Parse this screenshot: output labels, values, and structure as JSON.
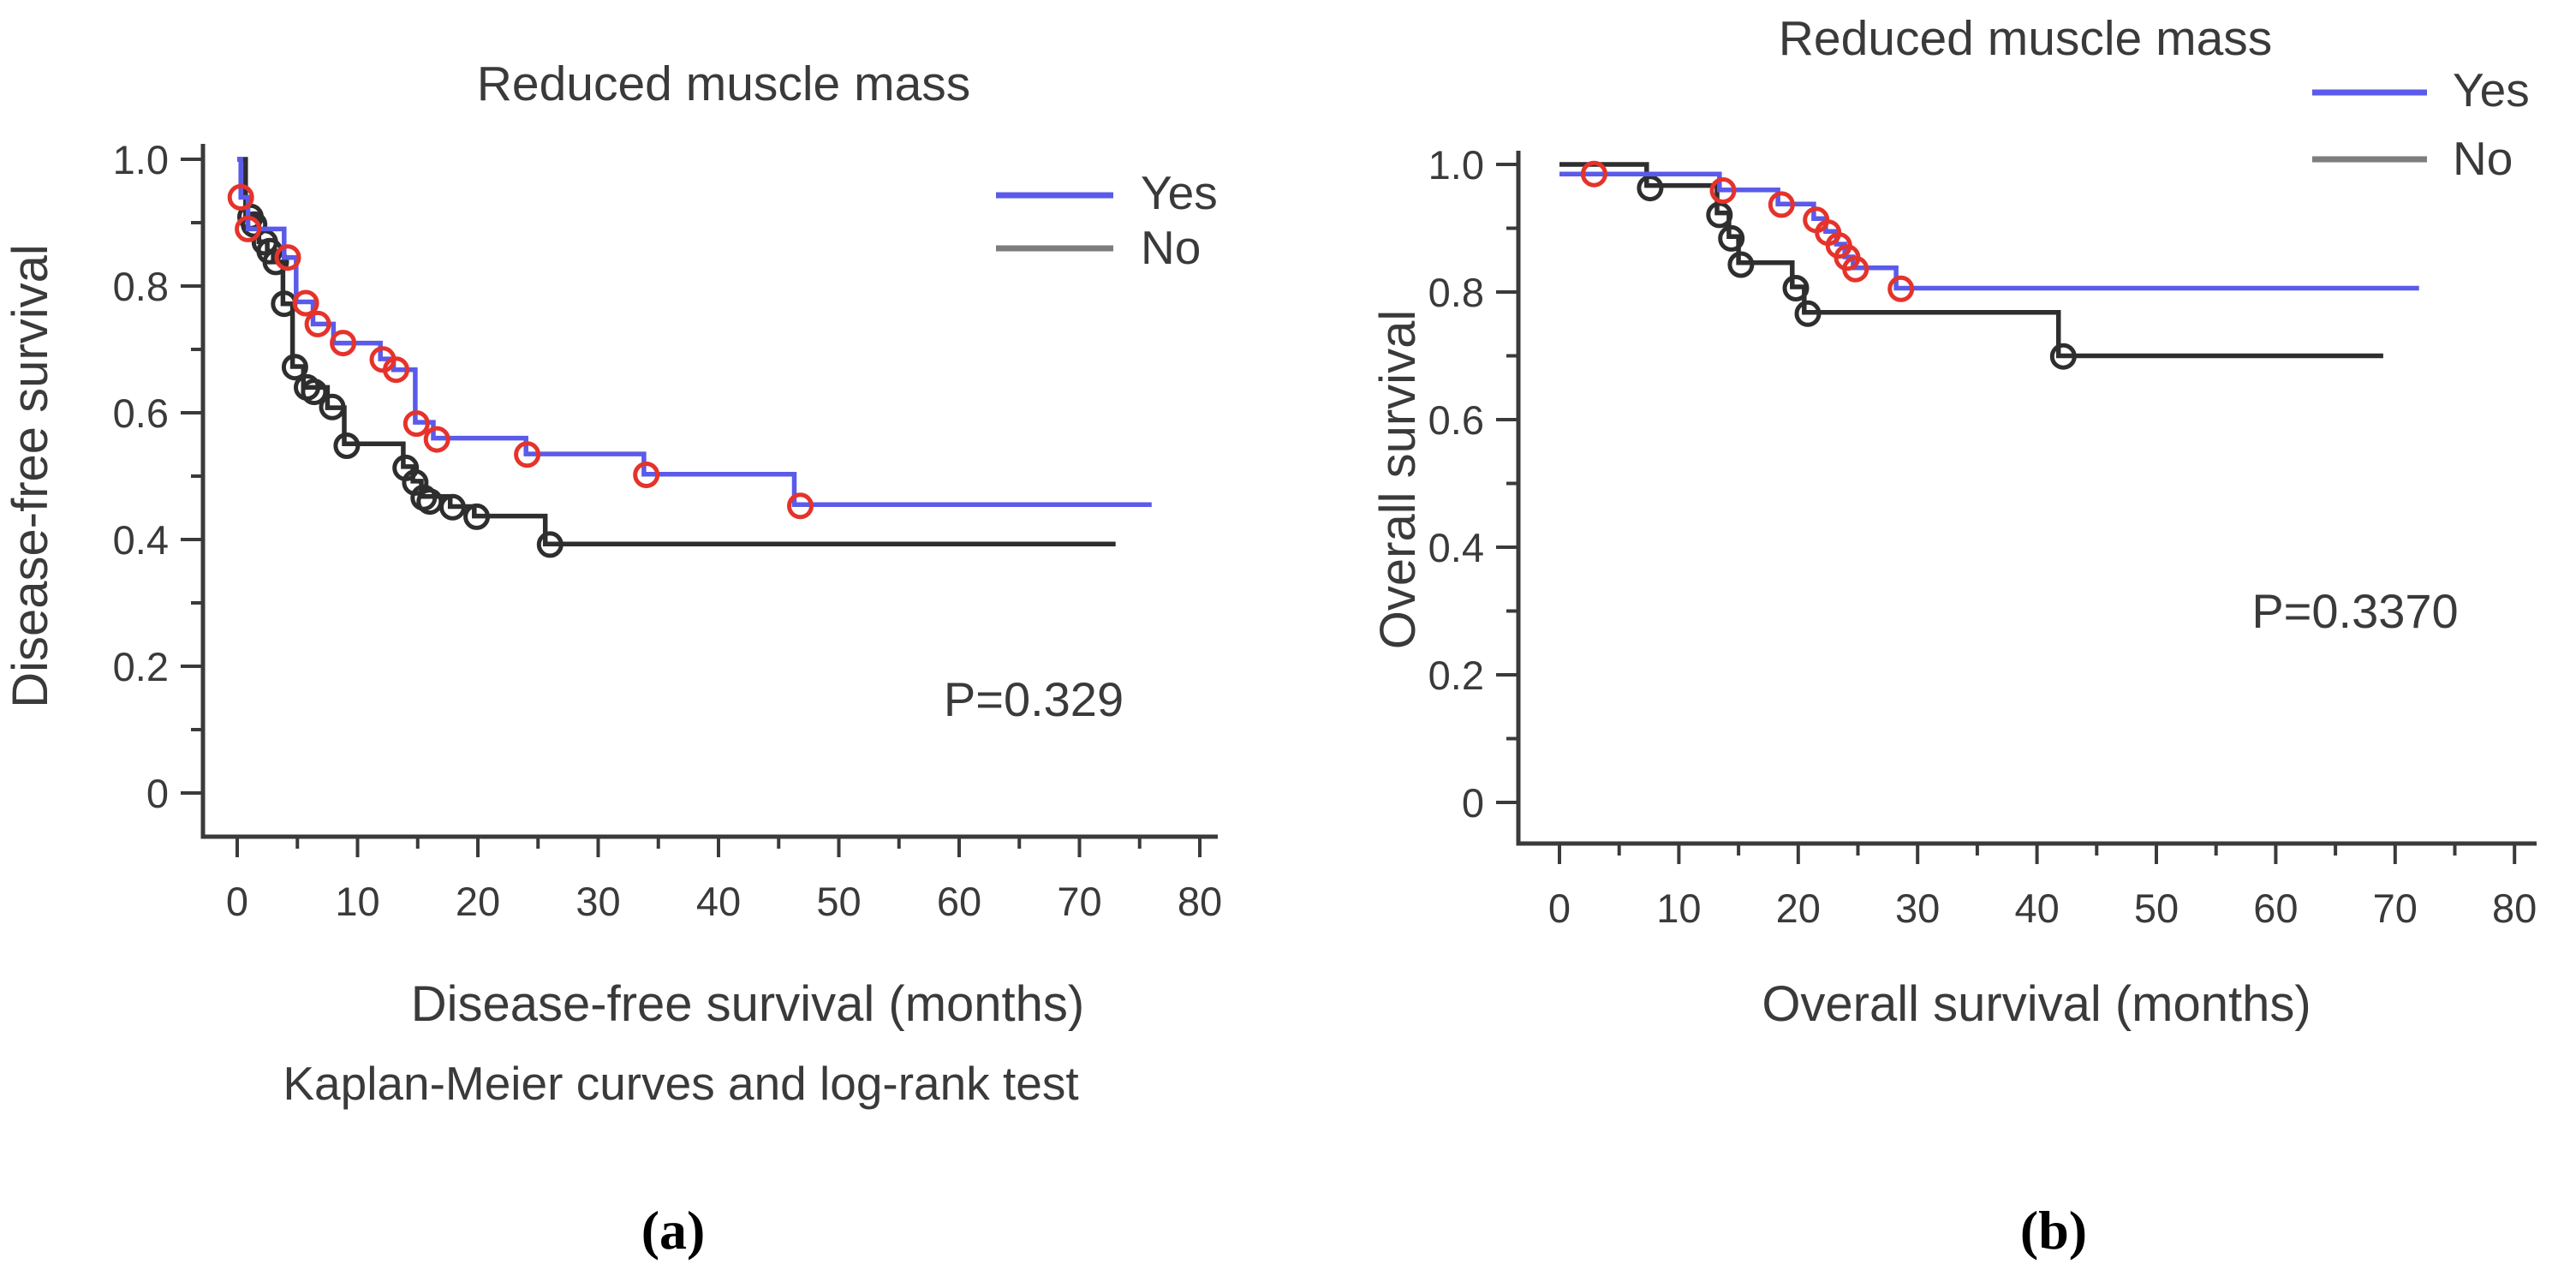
{
  "figure": {
    "method_note": "Kaplan-Meier curves and log-rank test",
    "panel_a_tag": "(a)",
    "panel_b_tag": "(b)"
  },
  "colors": {
    "yes_line": "#5a5aeb",
    "no_line": "#2e2e2e",
    "no_legend_line": "#7d7d7d",
    "censor_yes": "#e5332b",
    "censor_no": "#2e2e2e",
    "axis": "#3a3a3a",
    "text": "#3a3a3a"
  },
  "chart_data": [
    {
      "panel": "a",
      "type": "line",
      "variant": "kaplan_meier_step",
      "title": "Reduced muscle mass",
      "xlabel": "Disease-free survival (months)",
      "ylabel": "Disease-free survival",
      "p_value": "P=0.329",
      "xlim": [
        0,
        80
      ],
      "ylim": [
        0,
        1.0
      ],
      "x_ticks": [
        0,
        10,
        20,
        30,
        40,
        50,
        60,
        70,
        80
      ],
      "x_minor_interval": 5,
      "y_ticks": [
        "0",
        "0.2",
        "0.4",
        "0.6",
        "0.8",
        "1.0"
      ],
      "y_minor_interval": 0.1,
      "grid": false,
      "legend_position": "top-right-inside",
      "legend": [
        {
          "label": "Yes",
          "series": "Yes"
        },
        {
          "label": "No",
          "series": "No"
        }
      ],
      "series": [
        {
          "name": "Yes",
          "end_x": 76,
          "steps": [
            [
              0,
              1.0
            ],
            [
              0.3,
              0.94
            ],
            [
              0.9,
              0.89
            ],
            [
              3.9,
              0.845
            ],
            [
              4.9,
              0.775
            ],
            [
              6.3,
              0.74
            ],
            [
              8.0,
              0.71
            ],
            [
              11.9,
              0.685
            ],
            [
              13.0,
              0.668
            ],
            [
              14.8,
              0.585
            ],
            [
              16.3,
              0.56
            ],
            [
              24.0,
              0.535
            ],
            [
              33.8,
              0.503
            ],
            [
              46.3,
              0.455
            ]
          ],
          "censors": [
            [
              0.3,
              0.94
            ],
            [
              0.9,
              0.89
            ],
            [
              4.2,
              0.845
            ],
            [
              5.7,
              0.773
            ],
            [
              6.7,
              0.74
            ],
            [
              8.8,
              0.71
            ],
            [
              12.1,
              0.684
            ],
            [
              13.2,
              0.668
            ],
            [
              14.9,
              0.583
            ],
            [
              16.6,
              0.558
            ],
            [
              24.1,
              0.534
            ],
            [
              34.0,
              0.502
            ],
            [
              46.8,
              0.453
            ]
          ]
        },
        {
          "name": "No",
          "end_x": 73,
          "steps": [
            [
              0,
              1.0
            ],
            [
              0.7,
              0.91
            ],
            [
              1.8,
              0.87
            ],
            [
              2.5,
              0.855
            ],
            [
              3.0,
              0.838
            ],
            [
              3.8,
              0.772
            ],
            [
              4.6,
              0.673
            ],
            [
              5.5,
              0.64
            ],
            [
              7.5,
              0.608
            ],
            [
              8.9,
              0.551
            ],
            [
              13.8,
              0.515
            ],
            [
              14.6,
              0.492
            ],
            [
              15.3,
              0.468
            ],
            [
              17.7,
              0.452
            ],
            [
              19.7,
              0.437
            ],
            [
              25.6,
              0.393
            ]
          ],
          "censors": [
            [
              1.1,
              0.909
            ],
            [
              1.4,
              0.897
            ],
            [
              2.3,
              0.869
            ],
            [
              2.7,
              0.855
            ],
            [
              3.2,
              0.838
            ],
            [
              3.9,
              0.772
            ],
            [
              4.8,
              0.672
            ],
            [
              5.8,
              0.64
            ],
            [
              6.4,
              0.633
            ],
            [
              7.9,
              0.609
            ],
            [
              9.1,
              0.548
            ],
            [
              14.0,
              0.513
            ],
            [
              14.8,
              0.49
            ],
            [
              15.5,
              0.466
            ],
            [
              16.0,
              0.46
            ],
            [
              17.9,
              0.451
            ],
            [
              19.9,
              0.436
            ],
            [
              26.0,
              0.392
            ]
          ]
        }
      ]
    },
    {
      "panel": "b",
      "type": "line",
      "variant": "kaplan_meier_step",
      "title": "Reduced muscle mass",
      "xlabel": "Overall survival (months)",
      "ylabel": "Overall survival",
      "p_value": "P=0.3370",
      "xlim": [
        0,
        80
      ],
      "ylim": [
        0,
        1.0
      ],
      "x_ticks": [
        0,
        10,
        20,
        30,
        40,
        50,
        60,
        70,
        80
      ],
      "x_minor_interval": 5,
      "y_ticks": [
        "0",
        "0.2",
        "0.4",
        "0.6",
        "0.8",
        "1.0"
      ],
      "y_minor_interval": 0.1,
      "grid": false,
      "legend_position": "top-right-outside",
      "legend": [
        {
          "label": "Yes",
          "series": "Yes"
        },
        {
          "label": "No",
          "series": "No"
        }
      ],
      "series": [
        {
          "name": "Yes",
          "end_x": 72,
          "steps": [
            [
              0,
              0.985
            ],
            [
              13.4,
              0.96
            ],
            [
              18.3,
              0.938
            ],
            [
              21.3,
              0.915
            ],
            [
              22.3,
              0.895
            ],
            [
              23.2,
              0.875
            ],
            [
              23.9,
              0.855
            ],
            [
              24.6,
              0.838
            ],
            [
              28.2,
              0.806
            ]
          ],
          "censors": [
            [
              2.9,
              0.985
            ],
            [
              13.7,
              0.959
            ],
            [
              18.6,
              0.937
            ],
            [
              21.5,
              0.913
            ],
            [
              22.5,
              0.893
            ],
            [
              23.4,
              0.873
            ],
            [
              24.1,
              0.854
            ],
            [
              24.8,
              0.836
            ],
            [
              28.6,
              0.805
            ]
          ]
        },
        {
          "name": "No",
          "end_x": 69,
          "steps": [
            [
              0,
              1.0
            ],
            [
              7.3,
              0.967
            ],
            [
              13.2,
              0.924
            ],
            [
              14.2,
              0.887
            ],
            [
              15.0,
              0.846
            ],
            [
              19.5,
              0.808
            ],
            [
              20.5,
              0.768
            ],
            [
              41.8,
              0.7
            ]
          ],
          "censors": [
            [
              7.6,
              0.963
            ],
            [
              13.4,
              0.921
            ],
            [
              14.4,
              0.884
            ],
            [
              15.2,
              0.843
            ],
            [
              19.8,
              0.806
            ],
            [
              20.8,
              0.766
            ],
            [
              42.2,
              0.699
            ]
          ]
        }
      ]
    }
  ]
}
